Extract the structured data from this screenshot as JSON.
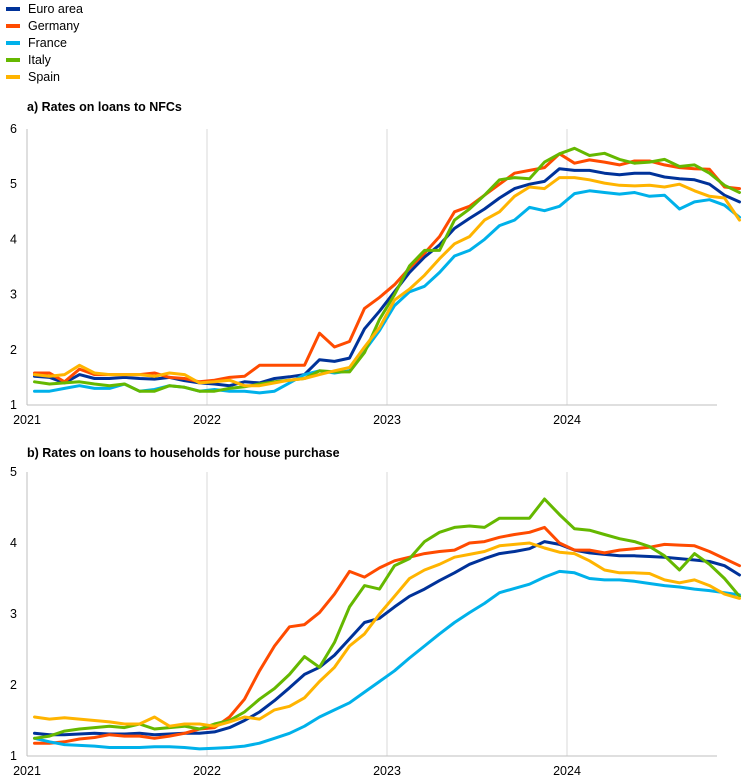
{
  "legend": [
    {
      "name": "Euro area",
      "color": "#003299"
    },
    {
      "name": "Germany",
      "color": "#ff4b00"
    },
    {
      "name": "France",
      "color": "#00b1ea"
    },
    {
      "name": "Italy",
      "color": "#65b800"
    },
    {
      "name": "Spain",
      "color": "#ffb400"
    }
  ],
  "chart_data": [
    {
      "type": "line",
      "title": "a) Rates on loans to NFCs",
      "xlabel": "",
      "ylabel": "",
      "x_start": "2021-01",
      "x_ticks": [
        "2021",
        "2022",
        "2023",
        "2024"
      ],
      "xlim": [
        "2021-01",
        "2024-10"
      ],
      "ylim": [
        1,
        6
      ],
      "y_ticks": [
        1,
        2,
        3,
        4,
        5,
        6
      ],
      "grid": "vertical",
      "series": [
        {
          "name": "Euro area",
          "color": "#003299",
          "values": [
            1.52,
            1.5,
            1.4,
            1.55,
            1.48,
            1.48,
            1.5,
            1.48,
            1.47,
            1.5,
            1.44,
            1.4,
            1.38,
            1.35,
            1.42,
            1.4,
            1.48,
            1.51,
            1.55,
            1.82,
            1.79,
            1.85,
            2.38,
            2.7,
            3.05,
            3.4,
            3.68,
            3.9,
            4.2,
            4.38,
            4.55,
            4.75,
            4.92,
            5.0,
            5.05,
            5.28,
            5.25,
            5.25,
            5.2,
            5.17,
            5.2,
            5.2,
            5.13,
            5.1,
            5.08,
            5.0,
            4.8,
            4.68
          ]
        },
        {
          "name": "Germany",
          "color": "#ff4b00",
          "values": [
            1.58,
            1.58,
            1.42,
            1.65,
            1.55,
            1.55,
            1.55,
            1.55,
            1.58,
            1.5,
            1.48,
            1.42,
            1.45,
            1.5,
            1.52,
            1.72,
            1.72,
            1.72,
            1.72,
            2.3,
            2.05,
            2.15,
            2.75,
            2.95,
            3.18,
            3.48,
            3.75,
            4.05,
            4.5,
            4.6,
            4.8,
            5.0,
            5.2,
            5.25,
            5.3,
            5.55,
            5.38,
            5.44,
            5.4,
            5.35,
            5.42,
            5.42,
            5.35,
            5.3,
            5.28,
            5.27,
            4.95,
            4.92
          ]
        },
        {
          "name": "France",
          "color": "#00b1ea",
          "values": [
            1.25,
            1.25,
            1.3,
            1.35,
            1.3,
            1.3,
            1.38,
            1.25,
            1.28,
            1.35,
            1.32,
            1.25,
            1.28,
            1.25,
            1.25,
            1.22,
            1.25,
            1.4,
            1.55,
            1.62,
            1.58,
            1.62,
            1.98,
            2.35,
            2.8,
            3.05,
            3.15,
            3.4,
            3.7,
            3.8,
            4.0,
            4.25,
            4.35,
            4.58,
            4.52,
            4.6,
            4.83,
            4.88,
            4.85,
            4.82,
            4.85,
            4.78,
            4.8,
            4.55,
            4.68,
            4.72,
            4.62,
            4.4
          ]
        },
        {
          "name": "Italy",
          "color": "#65b800",
          "values": [
            1.42,
            1.38,
            1.4,
            1.42,
            1.38,
            1.35,
            1.38,
            1.25,
            1.25,
            1.35,
            1.32,
            1.25,
            1.25,
            1.3,
            1.33,
            1.38,
            1.42,
            1.45,
            1.48,
            1.62,
            1.6,
            1.6,
            1.95,
            2.55,
            3.0,
            3.52,
            3.8,
            3.8,
            4.35,
            4.55,
            4.8,
            5.08,
            5.12,
            5.1,
            5.4,
            5.55,
            5.65,
            5.52,
            5.56,
            5.45,
            5.38,
            5.4,
            5.45,
            5.32,
            5.35,
            5.2,
            4.98,
            4.85
          ]
        },
        {
          "name": "Spain",
          "color": "#ffb400",
          "values": [
            1.55,
            1.52,
            1.55,
            1.72,
            1.58,
            1.55,
            1.55,
            1.55,
            1.52,
            1.58,
            1.55,
            1.4,
            1.42,
            1.45,
            1.35,
            1.35,
            1.4,
            1.45,
            1.48,
            1.55,
            1.62,
            1.68,
            2.05,
            2.4,
            2.9,
            3.1,
            3.35,
            3.65,
            3.92,
            4.05,
            4.35,
            4.5,
            4.78,
            4.95,
            4.92,
            5.12,
            5.12,
            5.08,
            5.02,
            4.98,
            4.97,
            4.98,
            4.95,
            5.0,
            4.88,
            4.78,
            4.75,
            4.35
          ]
        }
      ]
    },
    {
      "type": "line",
      "title": "b) Rates on loans to households for house purchase",
      "xlabel": "",
      "ylabel": "",
      "x_start": "2021-01",
      "x_ticks": [
        "2021",
        "2022",
        "2023",
        "2024"
      ],
      "xlim": [
        "2021-01",
        "2024-10"
      ],
      "ylim": [
        1,
        5
      ],
      "y_ticks": [
        1,
        2,
        3,
        4,
        5
      ],
      "grid": "vertical",
      "series": [
        {
          "name": "Euro area",
          "color": "#003299",
          "values": [
            1.32,
            1.3,
            1.3,
            1.31,
            1.32,
            1.31,
            1.31,
            1.32,
            1.3,
            1.31,
            1.32,
            1.32,
            1.34,
            1.4,
            1.5,
            1.62,
            1.78,
            1.96,
            2.15,
            2.25,
            2.42,
            2.65,
            2.88,
            2.94,
            3.1,
            3.25,
            3.35,
            3.47,
            3.58,
            3.7,
            3.78,
            3.85,
            3.88,
            3.92,
            4.02,
            3.98,
            3.9,
            3.86,
            3.84,
            3.82,
            3.82,
            3.81,
            3.8,
            3.78,
            3.76,
            3.74,
            3.68,
            3.55
          ]
        },
        {
          "name": "Germany",
          "color": "#ff4b00",
          "values": [
            1.18,
            1.18,
            1.2,
            1.24,
            1.26,
            1.3,
            1.28,
            1.28,
            1.25,
            1.28,
            1.32,
            1.38,
            1.4,
            1.55,
            1.8,
            2.2,
            2.55,
            2.82,
            2.85,
            3.02,
            3.28,
            3.6,
            3.52,
            3.65,
            3.75,
            3.8,
            3.85,
            3.88,
            3.9,
            4.0,
            4.02,
            4.08,
            4.12,
            4.15,
            4.22,
            4.0,
            3.9,
            3.9,
            3.86,
            3.9,
            3.92,
            3.94,
            3.98,
            3.97,
            3.96,
            3.88,
            3.78,
            3.68
          ]
        },
        {
          "name": "France",
          "color": "#00b1ea",
          "values": [
            1.25,
            1.2,
            1.16,
            1.15,
            1.14,
            1.12,
            1.12,
            1.12,
            1.13,
            1.13,
            1.12,
            1.1,
            1.11,
            1.12,
            1.14,
            1.18,
            1.25,
            1.32,
            1.42,
            1.55,
            1.65,
            1.75,
            1.9,
            2.05,
            2.2,
            2.38,
            2.55,
            2.72,
            2.88,
            3.02,
            3.15,
            3.3,
            3.36,
            3.42,
            3.52,
            3.6,
            3.58,
            3.5,
            3.48,
            3.48,
            3.46,
            3.43,
            3.4,
            3.38,
            3.35,
            3.33,
            3.3,
            3.27
          ]
        },
        {
          "name": "Italy",
          "color": "#65b800",
          "values": [
            1.25,
            1.28,
            1.35,
            1.38,
            1.4,
            1.42,
            1.4,
            1.45,
            1.38,
            1.4,
            1.42,
            1.38,
            1.45,
            1.5,
            1.62,
            1.8,
            1.95,
            2.15,
            2.4,
            2.25,
            2.6,
            3.1,
            3.4,
            3.35,
            3.68,
            3.78,
            4.02,
            4.15,
            4.22,
            4.24,
            4.22,
            4.35,
            4.35,
            4.35,
            4.62,
            4.4,
            4.2,
            4.18,
            4.12,
            4.06,
            4.02,
            3.95,
            3.82,
            3.62,
            3.85,
            3.7,
            3.5,
            3.25
          ]
        },
        {
          "name": "Spain",
          "color": "#ffb400",
          "values": [
            1.55,
            1.52,
            1.54,
            1.52,
            1.5,
            1.48,
            1.45,
            1.45,
            1.55,
            1.42,
            1.45,
            1.45,
            1.42,
            1.48,
            1.55,
            1.52,
            1.65,
            1.7,
            1.82,
            2.05,
            2.25,
            2.55,
            2.72,
            3.0,
            3.25,
            3.5,
            3.62,
            3.7,
            3.8,
            3.84,
            3.88,
            3.96,
            3.98,
            4.0,
            3.93,
            3.87,
            3.85,
            3.75,
            3.62,
            3.58,
            3.58,
            3.57,
            3.48,
            3.44,
            3.48,
            3.4,
            3.28,
            3.22
          ]
        }
      ]
    }
  ]
}
